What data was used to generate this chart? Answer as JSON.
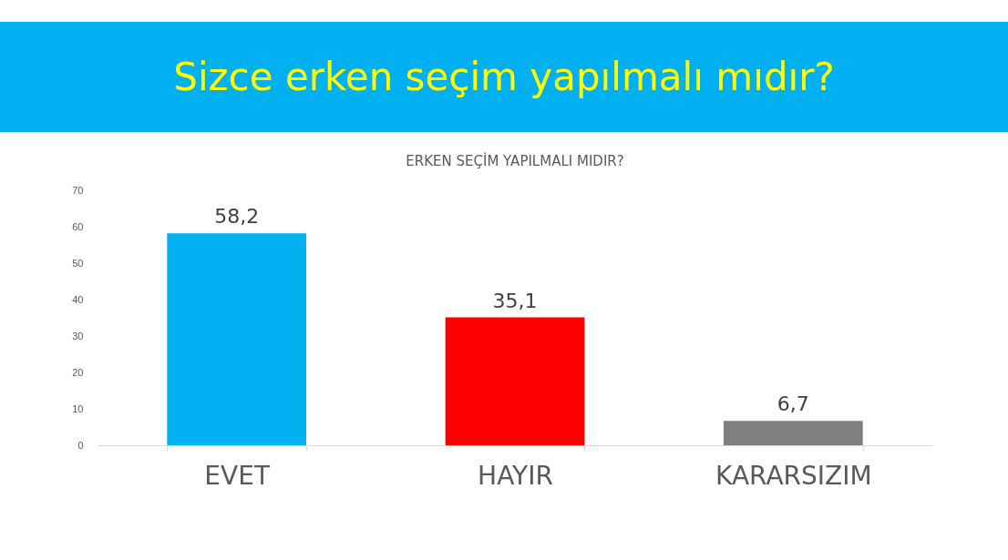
{
  "chart_data": {
    "type": "bar",
    "title": "Sizce erken seçim yapılmalı mıdır?",
    "subtitle": "ERKEN SEÇİM YAPILMALI MIDIR?",
    "categories": [
      "EVET",
      "HAYIR",
      "KARARSIZIM"
    ],
    "values": [
      58.2,
      35.1,
      6.7
    ],
    "colors": [
      "#00b0f0",
      "#ff0000",
      "#7f7f7f"
    ],
    "value_labels": [
      "58,2",
      "35,1",
      "6,7"
    ],
    "ylim": [
      0,
      70
    ],
    "yticks": [
      0,
      10,
      20,
      30,
      40,
      50,
      60,
      70
    ],
    "grid": false
  }
}
